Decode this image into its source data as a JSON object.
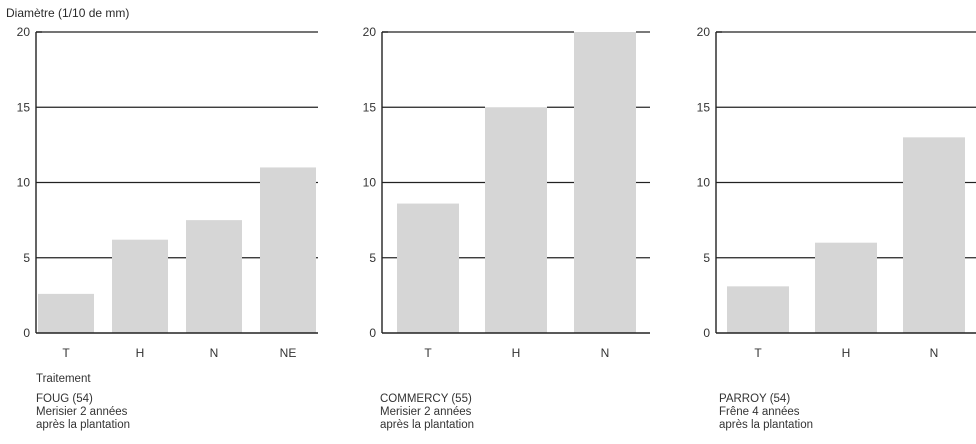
{
  "y_axis_label": "Diamètre (1/10 de mm)",
  "x_axis_label": "Traitement",
  "chart_data": [
    {
      "type": "bar",
      "categories": [
        "T",
        "H",
        "N",
        "NE"
      ],
      "values": [
        2.6,
        6.2,
        7.5,
        11.0
      ],
      "ylim": [
        0,
        20
      ],
      "yticks": [
        0,
        5,
        10,
        15,
        20
      ],
      "grid": true,
      "caption": [
        "FOUG (54)",
        "Merisier 2 années",
        "après la plantation"
      ]
    },
    {
      "type": "bar",
      "categories": [
        "T",
        "H",
        "N"
      ],
      "values": [
        8.6,
        15.0,
        20.0
      ],
      "ylim": [
        0,
        20
      ],
      "yticks": [
        0,
        5,
        10,
        15,
        20
      ],
      "grid": true,
      "caption": [
        "COMMERCY (55)",
        "Merisier 2 années",
        "après la plantation"
      ]
    },
    {
      "type": "bar",
      "categories": [
        "T",
        "H",
        "N"
      ],
      "values": [
        3.1,
        6.0,
        13.0
      ],
      "ylim": [
        0,
        20
      ],
      "yticks": [
        0,
        5,
        10,
        15,
        20
      ],
      "grid": true,
      "caption": [
        "PARROY (54)",
        "Frêne 4 années",
        "après la plantation"
      ]
    }
  ],
  "colors": {
    "bar": "#d6d6d6",
    "axis": "#222222",
    "grid": "#222222"
  }
}
